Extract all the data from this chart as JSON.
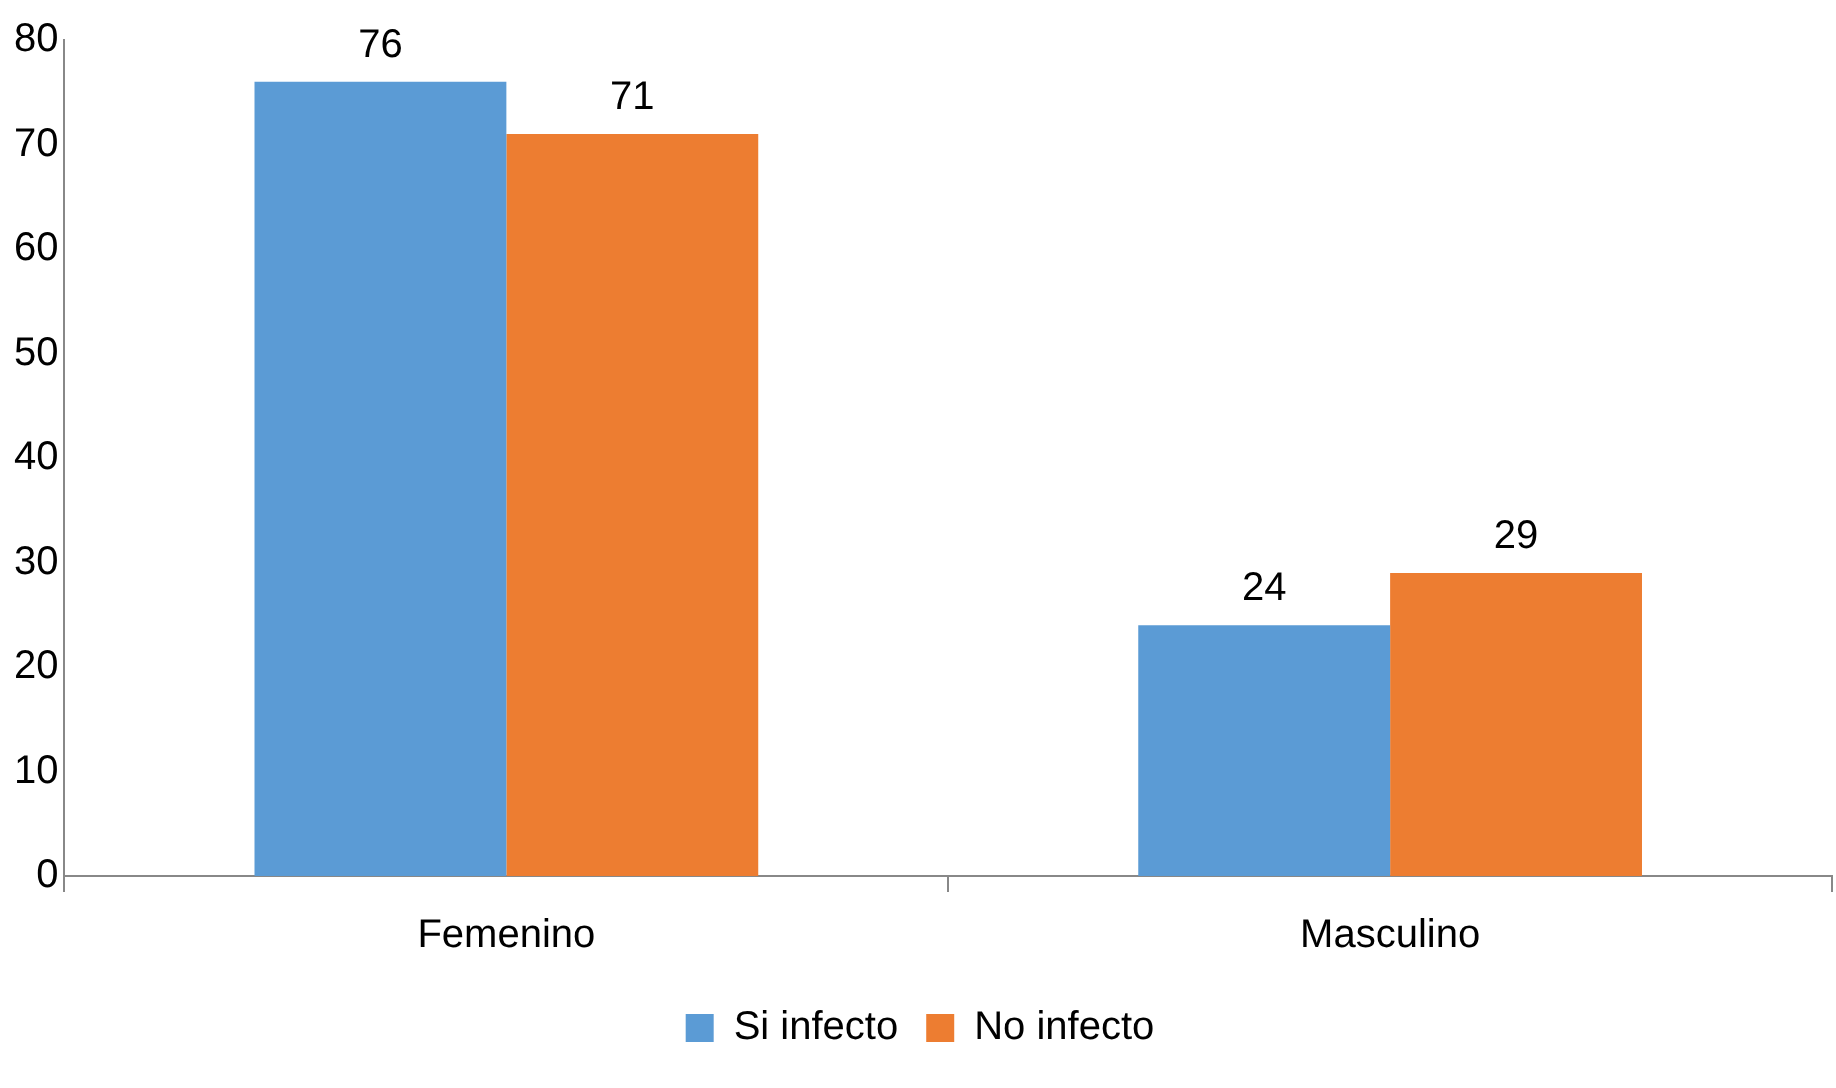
{
  "chart_data": {
    "type": "bar",
    "categories": [
      "Femenino",
      "Masculino"
    ],
    "series": [
      {
        "name": "Si infecto",
        "color": "#5b9bd5",
        "values": [
          76,
          24
        ]
      },
      {
        "name": "No infecto",
        "color": "#ed7d31",
        "values": [
          71,
          29
        ]
      }
    ],
    "ylim": [
      0,
      80
    ],
    "yticks": [
      0,
      10,
      20,
      30,
      40,
      50,
      60,
      70,
      80
    ],
    "grid": false,
    "legend": "bottom",
    "data_labels": true
  }
}
